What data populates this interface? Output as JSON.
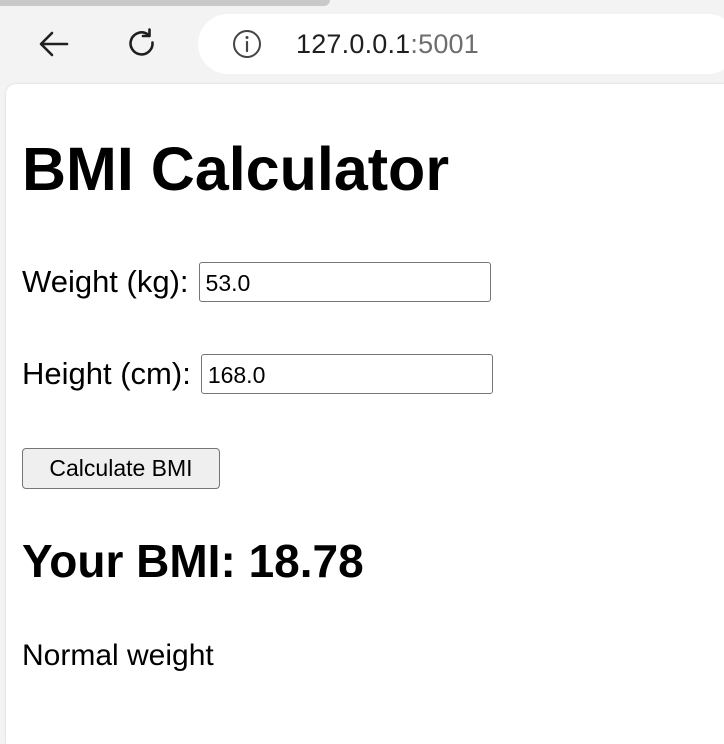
{
  "browser": {
    "url_host": "127.0.0.1",
    "url_port": ":5001"
  },
  "page": {
    "title": "BMI Calculator",
    "weight": {
      "label": "Weight (kg):",
      "value": "53.0"
    },
    "height": {
      "label": "Height (cm):",
      "value": "168.0"
    },
    "calculate_label": "Calculate BMI",
    "result": "Your BMI: 18.78",
    "category": "Normal weight"
  }
}
